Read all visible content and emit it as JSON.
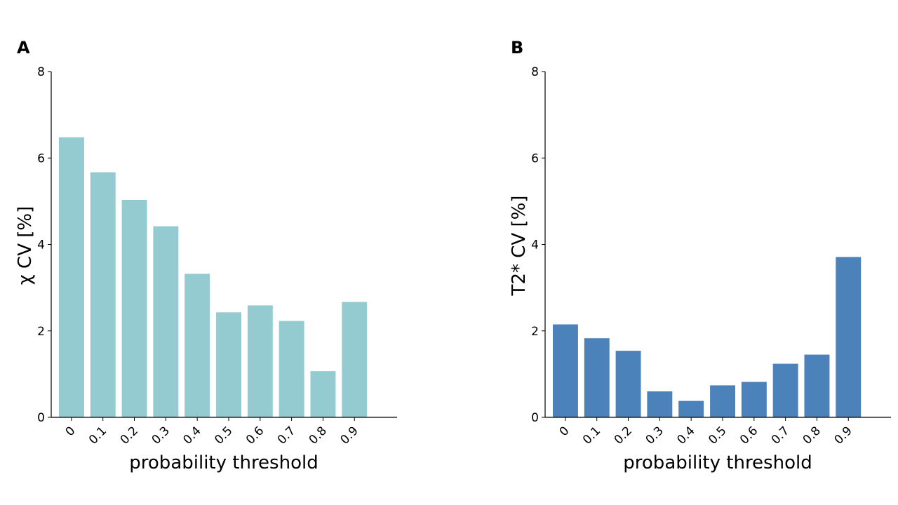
{
  "chart_data": [
    {
      "type": "bar",
      "panel_label": "A",
      "title": "",
      "categories": [
        "0",
        "0.1",
        "0.2",
        "0.3",
        "0.4",
        "0.5",
        "0.6",
        "0.7",
        "0.8",
        "0.9"
      ],
      "values": [
        6.48,
        5.67,
        5.03,
        4.42,
        3.32,
        2.43,
        2.59,
        2.23,
        1.07,
        2.67
      ],
      "xlabel": "probability threshold",
      "ylabel": "χ CV [%]",
      "ylim": [
        0,
        8
      ],
      "yticks": [
        "0",
        "2",
        "4",
        "6",
        "8"
      ],
      "color": "#93CBD1"
    },
    {
      "type": "bar",
      "panel_label": "B",
      "title": "",
      "categories": [
        "0",
        "0.1",
        "0.2",
        "0.3",
        "0.4",
        "0.5",
        "0.6",
        "0.7",
        "0.8",
        "0.9"
      ],
      "values": [
        2.15,
        1.83,
        1.54,
        0.6,
        0.38,
        0.74,
        0.82,
        1.24,
        1.45,
        3.71
      ],
      "xlabel": "probability threshold",
      "ylabel": "T2* CV [%]",
      "ylim": [
        0,
        8
      ],
      "yticks": [
        "0",
        "2",
        "4",
        "6",
        "8"
      ],
      "color": "#4A82B9"
    }
  ]
}
